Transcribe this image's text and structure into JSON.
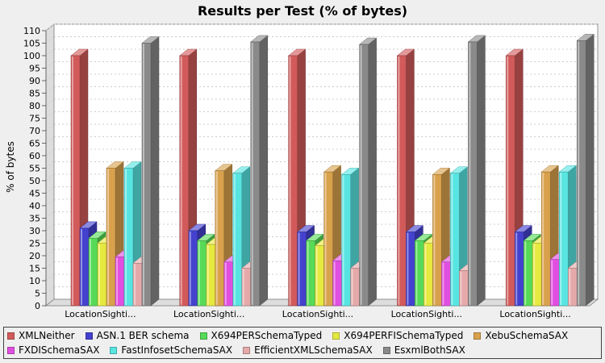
{
  "chart_data": {
    "type": "bar",
    "style": "3d-bar",
    "title": "Results per Test (% of bytes)",
    "xlabel": "",
    "ylabel": "% of bytes",
    "categories": [
      "LocationSighti...",
      "LocationSighti...",
      "LocationSighti...",
      "LocationSighti...",
      "LocationSighti..."
    ],
    "series": [
      {
        "name": "XMLNeither",
        "color": "#D25A5A",
        "values": [
          100,
          100,
          100,
          100,
          100
        ]
      },
      {
        "name": "ASN.1 BER schema",
        "color": "#4441CE",
        "values": [
          31,
          30,
          29.5,
          29.5,
          29.5
        ]
      },
      {
        "name": "X694PERSchemaTyped",
        "color": "#57DA57",
        "values": [
          27,
          26,
          26,
          26,
          26
        ]
      },
      {
        "name": "X694PERFISchemaTyped",
        "color": "#E6E93F",
        "values": [
          25,
          24.5,
          24,
          25,
          25
        ]
      },
      {
        "name": "XebuSchemaSAX",
        "color": "#D9A14C",
        "values": [
          55,
          54,
          53.5,
          52.5,
          53.5
        ]
      },
      {
        "name": "FXDISchemaSAX",
        "color": "#E14FE1",
        "values": [
          19.5,
          17.5,
          18,
          17.5,
          18.5
        ]
      },
      {
        "name": "FastInfosetSchemaSAX",
        "color": "#58E5E2",
        "values": [
          55,
          53,
          52.5,
          53,
          53.5
        ]
      },
      {
        "name": "EfficientXMLSchemaSAX",
        "color": "#E5A9A9",
        "values": [
          17,
          15,
          15,
          14,
          15
        ]
      },
      {
        "name": "EsxmlBothSAX",
        "color": "#8A8A8A",
        "values": [
          105,
          105.5,
          104.5,
          105.5,
          106
        ]
      }
    ],
    "ylim": [
      0,
      110
    ],
    "ytick_step": 5,
    "grid": true,
    "legend_position": "bottom",
    "legend_row_counts": [
      5,
      4
    ],
    "colors": {
      "background": "#EFEFEF",
      "plot_background": "#FFFFFF",
      "wall": "#DDDDDD",
      "gridline": "#CCCCCC",
      "plot_border": "#919191",
      "legend_border": "#404040",
      "text": "#000000"
    }
  }
}
